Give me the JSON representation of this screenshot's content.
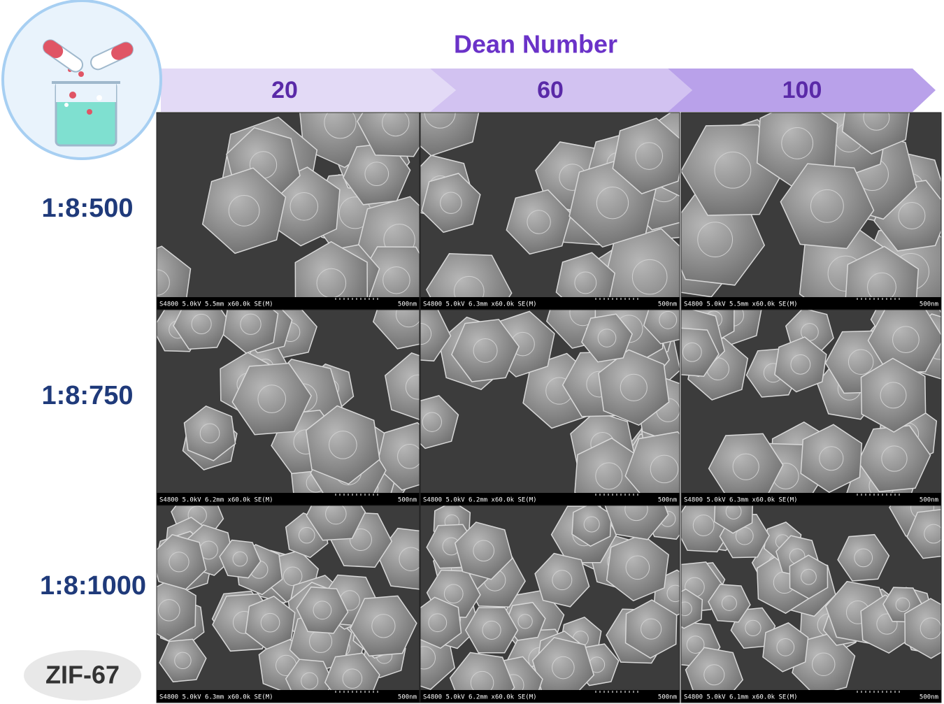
{
  "header": {
    "title": "Dean Number"
  },
  "columns": [
    "20",
    "60",
    "100"
  ],
  "rows": [
    "1:8:500",
    "1:8:750",
    "1:8:1000"
  ],
  "badge": "ZIF-67",
  "panels": [
    [
      {
        "info": "S4800 5.0kV 5.5mm x60.0k SE(M)",
        "scale": "500nm"
      },
      {
        "info": "S4800 5.0kV 6.3mm x60.0k SE(M)",
        "scale": "500nm"
      },
      {
        "info": "S4800 5.0kV 5.5mm x60.0k SE(M)",
        "scale": "500nm"
      }
    ],
    [
      {
        "info": "S4800 5.0kV 6.2mm x60.0k SE(M)",
        "scale": "500nm"
      },
      {
        "info": "S4800 5.0kV 6.2mm x60.0k SE(M)",
        "scale": "500nm"
      },
      {
        "info": "S4800 5.0kV 6.3mm x60.0k SE(M)",
        "scale": "500nm"
      }
    ],
    [
      {
        "info": "S4800 5.0kV 6.3mm x60.0k SE(M)",
        "scale": "500nm"
      },
      {
        "info": "S4800 5.0kV 6.2mm x60.0k SE(M)",
        "scale": "500nm"
      },
      {
        "info": "S4800 5.0kV 6.1mm x60.0k SE(M)",
        "scale": "500nm"
      }
    ]
  ]
}
